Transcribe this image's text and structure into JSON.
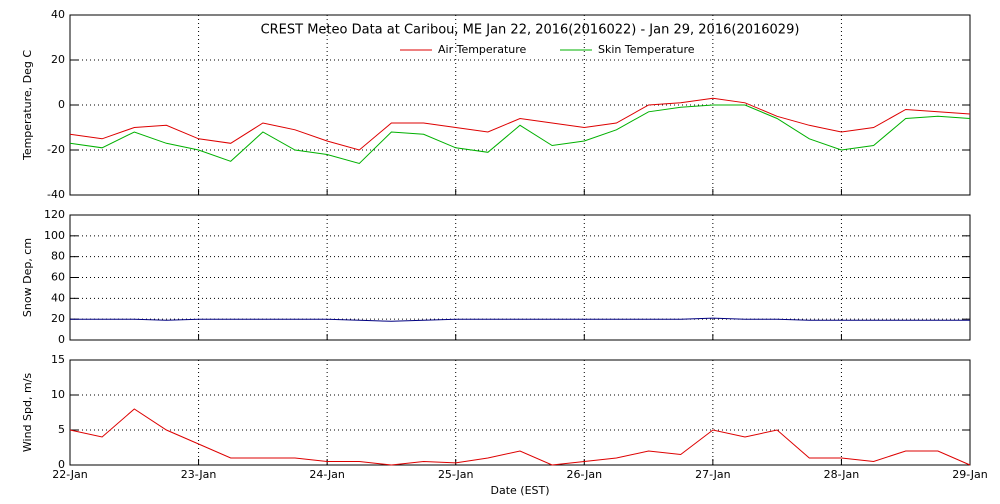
{
  "chart_data": [
    {
      "type": "line",
      "title": "CREST Meteo Data at Caribou, ME   Jan 22, 2016(2016022) - Jan 29, 2016(2016029)",
      "ylabel": "Temperature, Deg C",
      "ylim": [
        -40,
        40
      ],
      "yticks": [
        -40,
        -20,
        0,
        20,
        40
      ],
      "xlim": [
        0,
        7
      ],
      "grid": true,
      "legend": "top",
      "x": [
        0,
        0.25,
        0.5,
        0.75,
        1,
        1.25,
        1.5,
        1.75,
        2,
        2.25,
        2.5,
        2.75,
        3,
        3.25,
        3.5,
        3.75,
        4,
        4.25,
        4.5,
        4.75,
        5,
        5.25,
        5.5,
        5.75,
        6,
        6.25,
        6.5,
        6.75,
        7
      ],
      "series": [
        {
          "name": "Air Temperature",
          "color": "#dd0000",
          "values": [
            -13,
            -15,
            -10,
            -9,
            -15,
            -17,
            -8,
            -11,
            -16,
            -20,
            -8,
            -8,
            -10,
            -12,
            -6,
            -8,
            -10,
            -8,
            0,
            1,
            3,
            1,
            -5,
            -9,
            -12,
            -10,
            -2,
            -3,
            -4
          ]
        },
        {
          "name": "Skin Temperature",
          "color": "#00b000",
          "values": [
            -17,
            -19,
            -12,
            -17,
            -20,
            -25,
            -12,
            -20,
            -22,
            -26,
            -12,
            -13,
            -19,
            -21,
            -9,
            -18,
            -16,
            -11,
            -3,
            -1,
            0,
            0,
            -6,
            -15,
            -20,
            -18,
            -6,
            -5,
            -6
          ]
        }
      ]
    },
    {
      "type": "line",
      "ylabel": "Snow Dep, cm",
      "ylim": [
        0,
        120
      ],
      "yticks": [
        0,
        20,
        40,
        60,
        80,
        100,
        120
      ],
      "xlim": [
        0,
        7
      ],
      "grid": true,
      "x": [
        0,
        0.25,
        0.5,
        0.75,
        1,
        1.25,
        1.5,
        1.75,
        2,
        2.25,
        2.5,
        2.75,
        3,
        3.25,
        3.5,
        3.75,
        4,
        4.25,
        4.5,
        4.75,
        5,
        5.25,
        5.5,
        5.75,
        6,
        6.25,
        6.5,
        6.75,
        7
      ],
      "series": [
        {
          "color": "#000080",
          "values": [
            20,
            20,
            20,
            19,
            20,
            20,
            20,
            20,
            20,
            19,
            18,
            19,
            20,
            20,
            20,
            20,
            20,
            20,
            20,
            20,
            21,
            20,
            20,
            19,
            19,
            19,
            19,
            19,
            19
          ]
        }
      ]
    },
    {
      "type": "line",
      "ylabel": "Wind Spd, m/s",
      "xlabel": "Date (EST)",
      "ylim": [
        0,
        15
      ],
      "yticks": [
        0,
        5,
        10,
        15
      ],
      "xlim": [
        0,
        7
      ],
      "grid": true,
      "xticks": [
        {
          "value": 0,
          "label": "22-Jan"
        },
        {
          "value": 1,
          "label": "23-Jan"
        },
        {
          "value": 2,
          "label": "24-Jan"
        },
        {
          "value": 3,
          "label": "25-Jan"
        },
        {
          "value": 4,
          "label": "26-Jan"
        },
        {
          "value": 5,
          "label": "27-Jan"
        },
        {
          "value": 6,
          "label": "28-Jan"
        },
        {
          "value": 7,
          "label": "29-Jan"
        }
      ],
      "x": [
        0,
        0.25,
        0.5,
        0.75,
        1,
        1.25,
        1.5,
        1.75,
        2,
        2.25,
        2.5,
        2.75,
        3,
        3.25,
        3.5,
        3.75,
        4,
        4.25,
        4.5,
        4.75,
        5,
        5.25,
        5.5,
        5.75,
        6,
        6.25,
        6.5,
        6.75,
        7
      ],
      "series": [
        {
          "color": "#dd0000",
          "values": [
            5,
            4,
            8,
            5,
            3,
            1,
            1,
            1,
            0.5,
            0.5,
            0,
            0.5,
            0.3,
            1,
            2,
            0,
            0.5,
            1,
            2,
            1.5,
            5,
            4,
            5,
            1,
            1,
            0.5,
            2,
            2,
            0
          ]
        }
      ]
    }
  ]
}
